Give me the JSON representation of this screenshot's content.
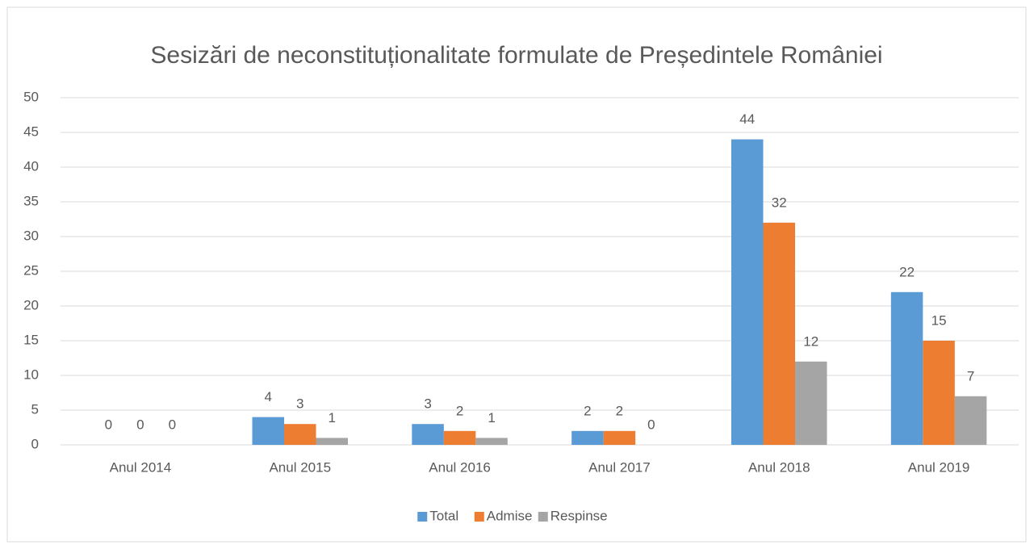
{
  "chart_data": {
    "type": "bar",
    "title": "Sesizări de neconstituționalitate formulate de Președintele României",
    "categories": [
      "Anul 2014",
      "Anul 2015",
      "Anul 2016",
      "Anul 2017",
      "Anul 2018",
      "Anul 2019"
    ],
    "series": [
      {
        "name": "Total",
        "color": "#5b9bd5",
        "values": [
          0,
          4,
          3,
          2,
          44,
          22
        ]
      },
      {
        "name": "Admise",
        "color": "#ed7d31",
        "values": [
          0,
          3,
          2,
          2,
          32,
          15
        ]
      },
      {
        "name": "Respinse",
        "color": "#a5a5a5",
        "values": [
          0,
          1,
          1,
          0,
          12,
          7
        ]
      }
    ],
    "ylim": [
      0,
      50
    ],
    "yticks": [
      0,
      5,
      10,
      15,
      20,
      25,
      30,
      35,
      40,
      45,
      50
    ],
    "grid": true,
    "legend": "bottom"
  }
}
